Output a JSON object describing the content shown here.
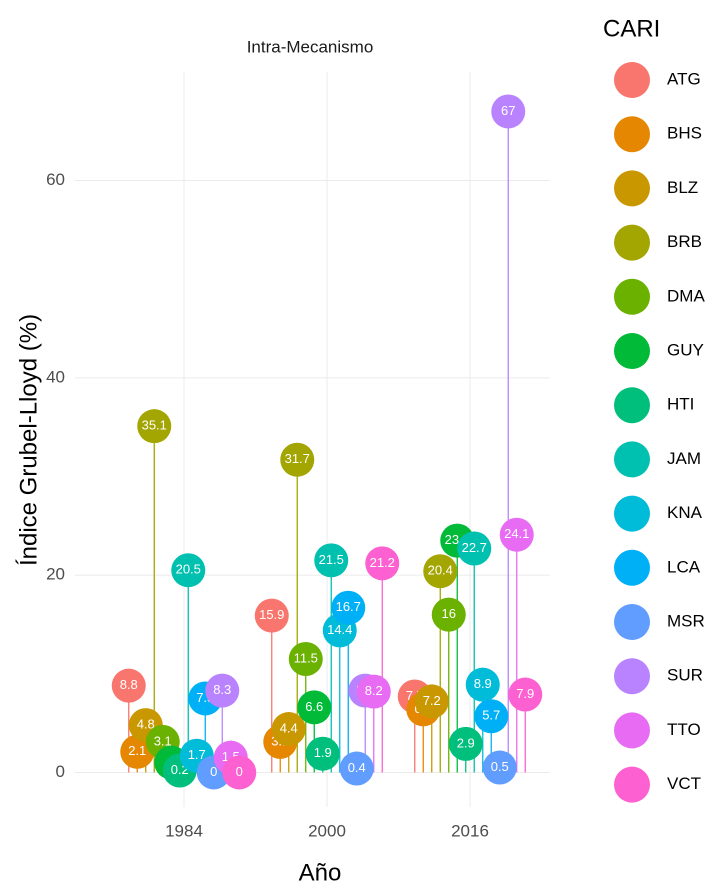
{
  "chart_data": {
    "type": "lollipop",
    "title": "Intra-Mecanismo",
    "x_label": "Año",
    "y_label": "Índice Grubel-Lloyd (%)",
    "legend_title": "CARI",
    "legend": "right",
    "grid": true,
    "x": [
      1984,
      2000,
      2016
    ],
    "xlim": [
      1976,
      2024
    ],
    "xticks": [
      1984,
      2000,
      2016
    ],
    "ylim": [
      -3.5,
      71
    ],
    "yticks": [
      0,
      20,
      40,
      60
    ],
    "series": [
      {
        "name": "ATG",
        "color": "#F8766D",
        "values": [
          8.8,
          15.9,
          7.7
        ]
      },
      {
        "name": "BHS",
        "color": "#E58700",
        "values": [
          2.1,
          3.1,
          6.4
        ]
      },
      {
        "name": "BLZ",
        "color": "#C99800",
        "values": [
          4.8,
          4.4,
          7.2
        ]
      },
      {
        "name": "BRB",
        "color": "#A3A500",
        "values": [
          35.1,
          31.7,
          20.4
        ]
      },
      {
        "name": "DMA",
        "color": "#6BB100",
        "values": [
          3.1,
          11.5,
          16
        ]
      },
      {
        "name": "GUY",
        "color": "#00BA38",
        "values": [
          1,
          6.6,
          23.5
        ]
      },
      {
        "name": "HTI",
        "color": "#00BF7D",
        "values": [
          0.2,
          1.9,
          2.9
        ]
      },
      {
        "name": "JAM",
        "color": "#00C0AF",
        "values": [
          20.5,
          21.5,
          22.7
        ]
      },
      {
        "name": "KNA",
        "color": "#00BCD8",
        "values": [
          1.7,
          14.4,
          8.9
        ]
      },
      {
        "name": "LCA",
        "color": "#00B0F6",
        "values": [
          7.5,
          16.7,
          5.7
        ]
      },
      {
        "name": "MSR",
        "color": "#619CFF",
        "values": [
          0,
          0.4,
          0.5
        ]
      },
      {
        "name": "SUR",
        "color": "#B983FF",
        "values": [
          8.3,
          8.3,
          67
        ]
      },
      {
        "name": "TTO",
        "color": "#E76BF3",
        "values": [
          1.5,
          8.2,
          24.1
        ]
      },
      {
        "name": "VCT",
        "color": "#FD61D1",
        "values": [
          0,
          21.2,
          7.9
        ]
      }
    ]
  }
}
